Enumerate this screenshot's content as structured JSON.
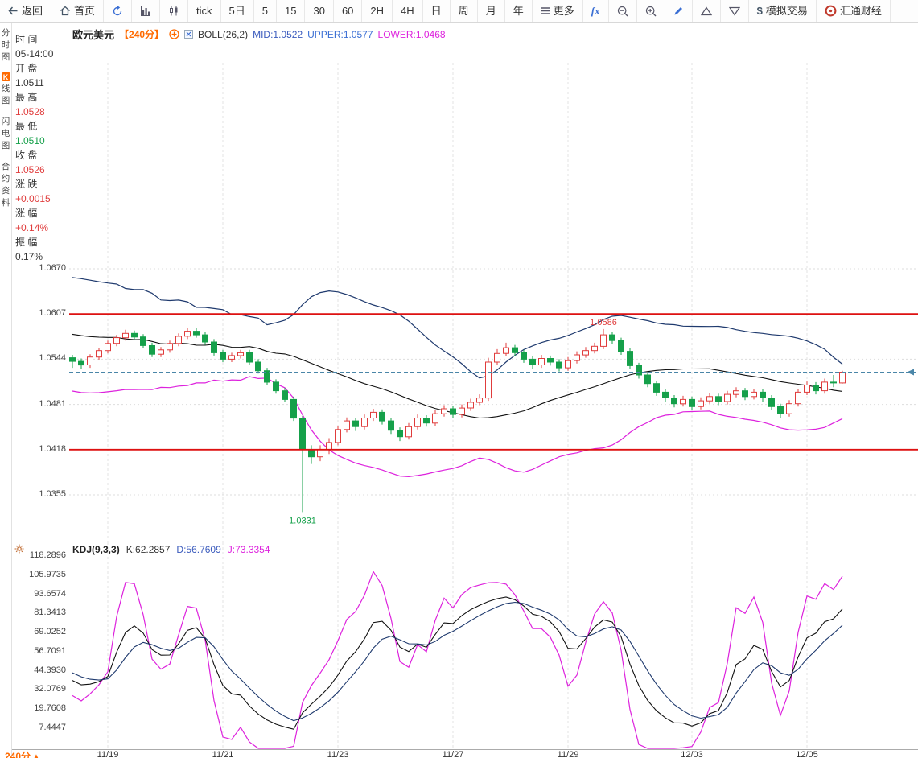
{
  "toolbar": {
    "items": [
      {
        "id": "back",
        "icon": "back-arrow",
        "label": "返回"
      },
      {
        "id": "home",
        "icon": "home",
        "label": "首页"
      },
      {
        "id": "refresh",
        "icon": "refresh",
        "label": ""
      },
      {
        "id": "bar-chart",
        "icon": "bar-chart",
        "label": ""
      },
      {
        "id": "candle-chart",
        "icon": "candle-chart",
        "label": ""
      },
      {
        "id": "tick",
        "icon": "",
        "label": "tick"
      },
      {
        "id": "period-5d",
        "icon": "",
        "label": "5日"
      },
      {
        "id": "period-5",
        "icon": "",
        "label": "5"
      },
      {
        "id": "period-15",
        "icon": "",
        "label": "15"
      },
      {
        "id": "period-30",
        "icon": "",
        "label": "30"
      },
      {
        "id": "period-60",
        "icon": "",
        "label": "60"
      },
      {
        "id": "period-2h",
        "icon": "",
        "label": "2H"
      },
      {
        "id": "period-4h",
        "icon": "",
        "label": "4H"
      },
      {
        "id": "period-day",
        "icon": "",
        "label": "日"
      },
      {
        "id": "period-week",
        "icon": "",
        "label": "周"
      },
      {
        "id": "period-month",
        "icon": "",
        "label": "月"
      },
      {
        "id": "period-year",
        "icon": "",
        "label": "年"
      },
      {
        "id": "more",
        "icon": "menu",
        "label": "更多"
      },
      {
        "id": "fx",
        "icon": "",
        "label": "fx"
      },
      {
        "id": "zoom-out",
        "icon": "zoom-out",
        "label": ""
      },
      {
        "id": "zoom-in",
        "icon": "zoom-in",
        "label": ""
      },
      {
        "id": "draw",
        "icon": "pencil",
        "label": ""
      },
      {
        "id": "shape-up",
        "icon": "triangle-up",
        "label": ""
      },
      {
        "id": "shape-down",
        "icon": "triangle-down",
        "label": ""
      },
      {
        "id": "sim-trade",
        "icon": "dollar",
        "label": "模拟交易"
      },
      {
        "id": "brand",
        "icon": "logo",
        "label": "汇通财经"
      }
    ]
  },
  "sidebar": {
    "items": [
      {
        "id": "time-share",
        "badge": "",
        "label": "分时图"
      },
      {
        "id": "kline",
        "badge": "K",
        "label": "线图"
      },
      {
        "id": "lightning",
        "badge": "",
        "label": "闪电图"
      },
      {
        "id": "contract-info",
        "badge": "",
        "label": "合约资料"
      }
    ]
  },
  "quote": {
    "rows": [
      {
        "label": "时 间",
        "value": "05-14:00",
        "color": "#333333"
      },
      {
        "label": "开 盘",
        "value": "1.0511",
        "color": "#333333"
      },
      {
        "label": "最 高",
        "value": "1.0528",
        "color": "#e03c3c"
      },
      {
        "label": "最 低",
        "value": "1.0510",
        "color": "#15a04a"
      },
      {
        "label": "收 盘",
        "value": "1.0526",
        "color": "#e03c3c"
      },
      {
        "label": "涨 跌",
        "value": "+0.0015",
        "color": "#e03c3c"
      },
      {
        "label": "涨 幅",
        "value": "+0.14%",
        "color": "#e03c3c"
      },
      {
        "label": "振 幅",
        "value": "0.17%",
        "color": "#333333"
      }
    ]
  },
  "chart_header": {
    "symbol": "欧元美元",
    "period": "【240分】",
    "indicator": "BOLL(26,2)",
    "mid": "MID:1.0522",
    "upper": "UPPER:1.0577",
    "lower": "LOWER:1.0468"
  },
  "kdj_header": {
    "title": "KDJ(9,3,3)",
    "k": "K:62.2857",
    "d": "D:56.7609",
    "j": "J:73.3354"
  },
  "footer": {
    "period": "240分"
  },
  "colors": {
    "up": "#e03c3c",
    "down": "#15a04a",
    "boll_mid": "#111111",
    "boll_upper": "#1f3a6e",
    "boll_lower": "#dd22dd",
    "kdj_k": "#111111",
    "kdj_d": "#1f3a6e",
    "kdj_j": "#dd22dd",
    "level": "#dd1111",
    "price_line": "#4a86a8",
    "accent": "#ff6a00"
  },
  "chart_data": {
    "type": "candlestick",
    "symbol": "欧元美元",
    "interval": "240分",
    "x_labels": [
      "11/19",
      "11/21",
      "11/23",
      "11/27",
      "11/29",
      "12/03",
      "12/05"
    ],
    "x_label_bar_index": [
      4,
      17,
      30,
      43,
      56,
      70,
      83
    ],
    "y_axis_labels": [
      "1.0670",
      "1.0607",
      "1.0544",
      "1.0481",
      "1.0418",
      "1.0355"
    ],
    "levels": [
      {
        "value": 1.0607,
        "color": "#dd1111"
      },
      {
        "value": 1.0418,
        "color": "#dd1111"
      }
    ],
    "current_price": 1.0526,
    "annotations": [
      {
        "text": "1.0586",
        "bar": 60,
        "price": 1.0586,
        "color": "#e03c3c",
        "position": "above"
      },
      {
        "text": "1.0331",
        "bar": 26,
        "price": 1.0331,
        "color": "#15a04a",
        "position": "below"
      }
    ],
    "boll": {
      "period": 26,
      "k": 2,
      "mid": 1.0522,
      "upper": 1.0577,
      "lower": 1.0468
    },
    "kdj": {
      "params": [
        9,
        3,
        3
      ],
      "k": 62.2857,
      "d": 56.7609,
      "j": 73.3354,
      "y_axis_labels": [
        "118.2896",
        "105.9735",
        "93.6574",
        "81.3413",
        "69.0252",
        "56.7091",
        "44.3930",
        "32.0769",
        "19.7608",
        "7.4447"
      ]
    },
    "pre_closes": [
      1.0635,
      1.0598,
      1.056,
      1.062,
      1.064,
      1.058,
      1.054,
      1.0605,
      1.063,
      1.057,
      1.052,
      1.0585,
      1.0615,
      1.056,
      1.051,
      1.059,
      1.0625,
      1.0565,
      1.0515,
      1.055
    ],
    "candles": [
      [
        1.0546,
        1.055,
        1.0532,
        1.0541
      ],
      [
        1.0541,
        1.0545,
        1.0531,
        1.0536
      ],
      [
        1.0536,
        1.0551,
        1.0532,
        1.0547
      ],
      [
        1.0547,
        1.056,
        1.0543,
        1.0556
      ],
      [
        1.0556,
        1.057,
        1.0552,
        1.0566
      ],
      [
        1.0566,
        1.0578,
        1.0562,
        1.0574
      ],
      [
        1.0574,
        1.0585,
        1.057,
        1.058
      ],
      [
        1.058,
        1.0584,
        1.0571,
        1.0575
      ],
      [
        1.0575,
        1.0579,
        1.0559,
        1.0563
      ],
      [
        1.0563,
        1.0567,
        1.0547,
        1.0551
      ],
      [
        1.0551,
        1.0561,
        1.0547,
        1.0557
      ],
      [
        1.0557,
        1.057,
        1.0553,
        1.0566
      ],
      [
        1.0566,
        1.058,
        1.0562,
        1.0576
      ],
      [
        1.0576,
        1.0588,
        1.0572,
        1.0583
      ],
      [
        1.0583,
        1.0587,
        1.0574,
        1.0578
      ],
      [
        1.0578,
        1.0582,
        1.0564,
        1.0568
      ],
      [
        1.0568,
        1.0572,
        1.0549,
        1.0553
      ],
      [
        1.0553,
        1.0557,
        1.054,
        1.0544
      ],
      [
        1.0544,
        1.0553,
        1.054,
        1.0549
      ],
      [
        1.0549,
        1.0557,
        1.0545,
        1.0553
      ],
      [
        1.0553,
        1.0557,
        1.0536,
        1.054
      ],
      [
        1.054,
        1.0544,
        1.0524,
        1.0528
      ],
      [
        1.0528,
        1.0532,
        1.0508,
        1.0512
      ],
      [
        1.0512,
        1.0516,
        1.0496,
        1.05
      ],
      [
        1.05,
        1.0504,
        1.0484,
        1.0488
      ],
      [
        1.0488,
        1.0492,
        1.0458,
        1.0462
      ],
      [
        1.0462,
        1.0465,
        1.0331,
        1.0418
      ],
      [
        1.0418,
        1.0424,
        1.0398,
        1.0408
      ],
      [
        1.0408,
        1.0424,
        1.0402,
        1.0418
      ],
      [
        1.0418,
        1.0434,
        1.0412,
        1.0428
      ],
      [
        1.0428,
        1.0451,
        1.0424,
        1.0446
      ],
      [
        1.0446,
        1.0463,
        1.0442,
        1.0458
      ],
      [
        1.0458,
        1.0462,
        1.0444,
        1.045
      ],
      [
        1.045,
        1.0467,
        1.0446,
        1.0462
      ],
      [
        1.0462,
        1.0475,
        1.0458,
        1.047
      ],
      [
        1.047,
        1.0474,
        1.0453,
        1.0458
      ],
      [
        1.0458,
        1.0462,
        1.044,
        1.0445
      ],
      [
        1.0445,
        1.0449,
        1.043,
        1.0436
      ],
      [
        1.0436,
        1.0455,
        1.0432,
        1.045
      ],
      [
        1.045,
        1.0467,
        1.0446,
        1.0462
      ],
      [
        1.0462,
        1.0466,
        1.045,
        1.0455
      ],
      [
        1.0455,
        1.0473,
        1.0451,
        1.0468
      ],
      [
        1.0468,
        1.048,
        1.0464,
        1.0475
      ],
      [
        1.0475,
        1.0479,
        1.0462,
        1.0467
      ],
      [
        1.0467,
        1.0481,
        1.0463,
        1.0476
      ],
      [
        1.0476,
        1.0489,
        1.0472,
        1.0484
      ],
      [
        1.0484,
        1.0495,
        1.048,
        1.049
      ],
      [
        1.049,
        1.0546,
        1.0486,
        1.054
      ],
      [
        1.054,
        1.0558,
        1.0536,
        1.0552
      ],
      [
        1.0552,
        1.0567,
        1.0548,
        1.056
      ],
      [
        1.056,
        1.0564,
        1.0548,
        1.0553
      ],
      [
        1.0553,
        1.0557,
        1.0539,
        1.0544
      ],
      [
        1.0544,
        1.0548,
        1.0531,
        1.0536
      ],
      [
        1.0536,
        1.055,
        1.0532,
        1.0545
      ],
      [
        1.0545,
        1.0549,
        1.0535,
        1.054
      ],
      [
        1.054,
        1.0544,
        1.0527,
        1.0532
      ],
      [
        1.0532,
        1.0547,
        1.0528,
        1.0542
      ],
      [
        1.0542,
        1.0555,
        1.0538,
        1.055
      ],
      [
        1.055,
        1.0561,
        1.0546,
        1.0556
      ],
      [
        1.0556,
        1.0567,
        1.0552,
        1.0562
      ],
      [
        1.0562,
        1.0586,
        1.0558,
        1.0578
      ],
      [
        1.0578,
        1.0582,
        1.0565,
        1.057
      ],
      [
        1.057,
        1.0574,
        1.055,
        1.0555
      ],
      [
        1.0555,
        1.0559,
        1.053,
        1.0535
      ],
      [
        1.0535,
        1.0539,
        1.0517,
        1.0522
      ],
      [
        1.0522,
        1.0526,
        1.0505,
        1.051
      ],
      [
        1.051,
        1.0514,
        1.0493,
        1.0498
      ],
      [
        1.0498,
        1.0502,
        1.0485,
        1.049
      ],
      [
        1.049,
        1.0494,
        1.0477,
        1.0482
      ],
      [
        1.0482,
        1.0493,
        1.0478,
        1.0488
      ],
      [
        1.0488,
        1.0492,
        1.0473,
        1.0478
      ],
      [
        1.0478,
        1.0491,
        1.0474,
        1.0486
      ],
      [
        1.0486,
        1.0497,
        1.0482,
        1.0492
      ],
      [
        1.0492,
        1.0496,
        1.048,
        1.0485
      ],
      [
        1.0485,
        1.05,
        1.0481,
        1.0495
      ],
      [
        1.0495,
        1.0505,
        1.0491,
        1.05
      ],
      [
        1.05,
        1.0504,
        1.0487,
        1.0492
      ],
      [
        1.0492,
        1.0503,
        1.0488,
        1.0498
      ],
      [
        1.0498,
        1.0502,
        1.0485,
        1.049
      ],
      [
        1.049,
        1.0494,
        1.0473,
        1.0478
      ],
      [
        1.0478,
        1.0482,
        1.0462,
        1.0468
      ],
      [
        1.0468,
        1.0487,
        1.0464,
        1.0482
      ],
      [
        1.0482,
        1.0503,
        1.0478,
        1.0498
      ],
      [
        1.0498,
        1.0513,
        1.0494,
        1.0508
      ],
      [
        1.0508,
        1.0512,
        1.0495,
        1.05
      ],
      [
        1.05,
        1.0517,
        1.0496,
        1.0512
      ],
      [
        1.0512,
        1.0522,
        1.0505,
        1.0511
      ],
      [
        1.0511,
        1.0528,
        1.051,
        1.0526
      ]
    ]
  }
}
